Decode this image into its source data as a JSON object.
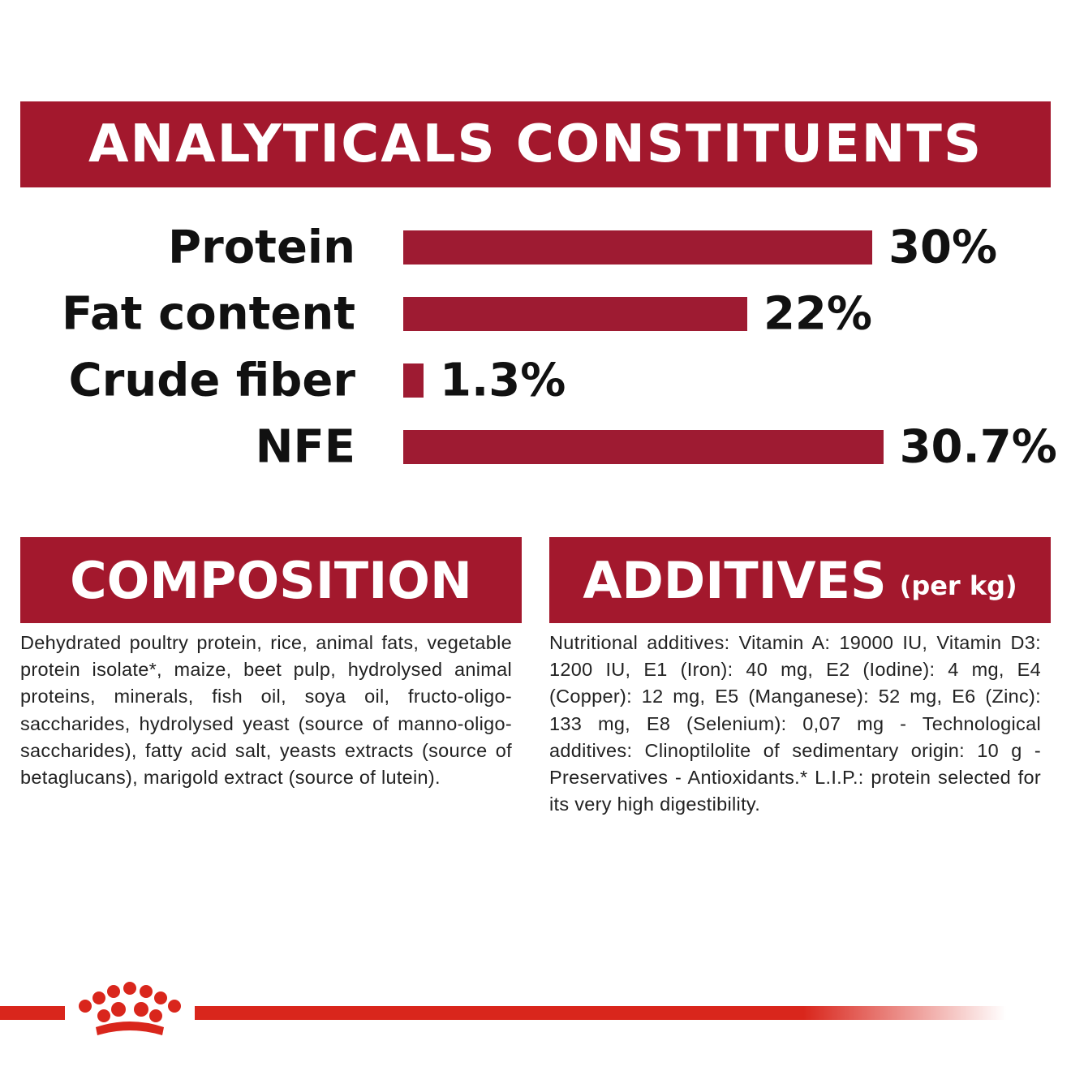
{
  "chart_data": {
    "type": "bar",
    "orientation": "horizontal",
    "title": "ANALYTICALS CONSTITUENTS",
    "categories": [
      "Protein",
      "Fat content",
      "Crude fiber",
      "NFE"
    ],
    "values": [
      30,
      22,
      1.3,
      30.7
    ],
    "value_labels": [
      "30%",
      "22%",
      "1.3%",
      "30.7%"
    ],
    "color": "#9e1b32"
  },
  "composition": {
    "title": "COMPOSITION",
    "text": "Dehydrated poultry protein, rice, animal fats, vegetable protein isolate*, maize, beet pulp, hydrolysed animal proteins, minerals, fish oil, soya oil, fructo-oligo-saccharides, hydrolysed yeast (source of manno-oligo-saccharides), fatty acid salt, yeasts extracts (source of betaglucans), marigold extract (source of lutein)."
  },
  "additives": {
    "title": "ADDITIVES",
    "unit": "(per kg)",
    "text": "Nutritional additives: Vitamin A: 19000 IU, Vitamin D3: 1200 IU, E1 (Iron): 40 mg, E2 (Iodine): 4 mg, E4 (Copper): 12 mg, E5 (Manganese): 52 mg, E6 (Zinc): 133 mg, E8 (Selenium): 0,07 mg - Technological additives: Clinoptilolite of sedimentary origin: 10 g - Preservatives - Antioxidants.* L.I.P.: protein selected for its very high digestibility."
  }
}
